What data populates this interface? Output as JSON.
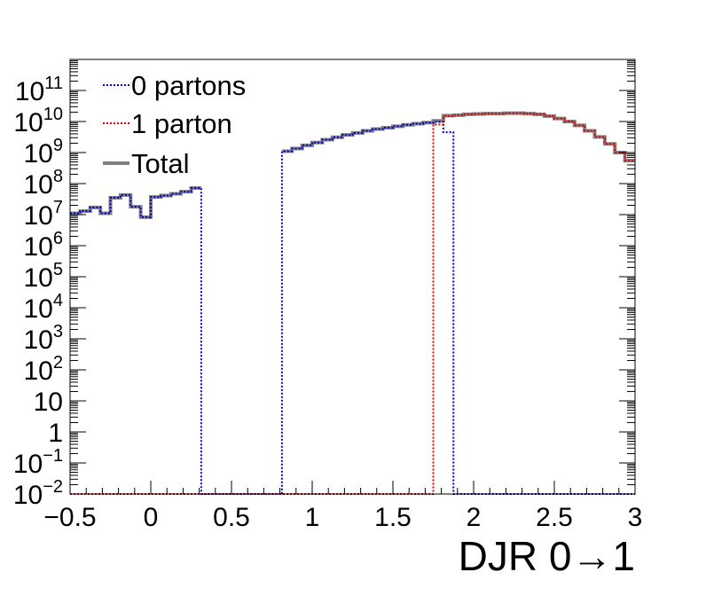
{
  "chart_data": {
    "type": "line",
    "title": "",
    "xlabel": "DJR 0→1",
    "ylabel": "",
    "xlim": [
      -0.5,
      3
    ],
    "ylim": [
      0.01,
      1000000000000.0
    ],
    "y_scale": "log",
    "grid": false,
    "legend_placement": "top-left",
    "x_ticks": [
      {
        "value": -0.5,
        "label": "−0.5"
      },
      {
        "value": 0,
        "label": "0"
      },
      {
        "value": 0.5,
        "label": "0.5"
      },
      {
        "value": 1,
        "label": "1"
      },
      {
        "value": 1.5,
        "label": "1.5"
      },
      {
        "value": 2,
        "label": "2"
      },
      {
        "value": 2.5,
        "label": "2.5"
      },
      {
        "value": 3,
        "label": "3"
      }
    ],
    "y_ticks": [
      {
        "value": 0.01,
        "base": "10",
        "exp": "−2"
      },
      {
        "value": 0.1,
        "base": "10",
        "exp": "−1"
      },
      {
        "value": 1,
        "base": "1",
        "exp": ""
      },
      {
        "value": 10,
        "base": "10",
        "exp": ""
      },
      {
        "value": 100,
        "base": "10",
        "exp": "2"
      },
      {
        "value": 1000,
        "base": "10",
        "exp": "3"
      },
      {
        "value": 10000,
        "base": "10",
        "exp": "4"
      },
      {
        "value": 100000,
        "base": "10",
        "exp": "5"
      },
      {
        "value": 1000000,
        "base": "10",
        "exp": "6"
      },
      {
        "value": 10000000,
        "base": "10",
        "exp": "7"
      },
      {
        "value": 100000000,
        "base": "10",
        "exp": "8"
      },
      {
        "value": 1000000000,
        "base": "10",
        "exp": "9"
      },
      {
        "value": 10000000000,
        "base": "10",
        "exp": "10"
      },
      {
        "value": 100000000000,
        "base": "10",
        "exp": "11"
      }
    ],
    "bins": {
      "start": -0.5,
      "width": 0.0625,
      "count": 56
    },
    "series": [
      {
        "name": "0 partons",
        "color": "#0000cc",
        "style": "dotted",
        "values": [
          11000000.0,
          13000000.0,
          17000000.0,
          11000000.0,
          35000000.0,
          43000000.0,
          18000000.0,
          8300000.0,
          37000000.0,
          41000000.0,
          47000000.0,
          55000000.0,
          72000000.0,
          0.01,
          0.01,
          0.01,
          0.01,
          0.01,
          0.01,
          0.01,
          0.01,
          1100000000.0,
          1350000000.0,
          1700000000.0,
          2100000000.0,
          2600000000.0,
          3100000000.0,
          3700000000.0,
          4300000000.0,
          5000000000.0,
          5700000000.0,
          6300000000.0,
          7000000000.0,
          7800000000.0,
          8500000000.0,
          9200000000.0,
          9800000000.0,
          4500000000.0,
          0.01,
          0.01,
          0.01,
          0.01,
          0.01,
          0.01,
          0.01,
          0.01,
          0.01,
          0.01,
          0.01,
          0.01,
          0.01,
          0.01,
          0.01,
          0.01,
          0.01,
          0.01
        ]
      },
      {
        "name": "1 parton",
        "color": "#dd0000",
        "style": "dotted",
        "values": [
          0.01,
          0.01,
          0.01,
          0.01,
          0.01,
          0.01,
          0.01,
          0.01,
          0.01,
          0.01,
          0.01,
          0.01,
          0.01,
          0.01,
          0.01,
          0.01,
          0.01,
          0.01,
          0.01,
          0.01,
          0.01,
          0.01,
          0.01,
          0.01,
          0.01,
          0.01,
          0.01,
          0.01,
          0.01,
          0.01,
          0.01,
          0.01,
          0.01,
          0.01,
          0.01,
          0.01,
          8000000000.0,
          15000000000.0,
          16000000000.0,
          17000000000.0,
          17500000000.0,
          18000000000.0,
          18000000000.0,
          18500000000.0,
          18500000000.0,
          18000000000.0,
          17000000000.0,
          15000000000.0,
          12500000000.0,
          10000000000.0,
          7500000000.0,
          5000000000.0,
          3200000000.0,
          1900000000.0,
          1000000000.0,
          550000000.0
        ]
      },
      {
        "name": "Total",
        "color": "#808080",
        "style": "solid",
        "values": [
          11000000.0,
          13000000.0,
          17000000.0,
          11000000.0,
          35000000.0,
          43000000.0,
          18000000.0,
          8300000.0,
          37000000.0,
          41000000.0,
          47000000.0,
          55000000.0,
          72000000.0,
          null,
          null,
          null,
          null,
          null,
          null,
          null,
          null,
          1100000000.0,
          1350000000.0,
          1700000000.0,
          2100000000.0,
          2600000000.0,
          3100000000.0,
          3700000000.0,
          4300000000.0,
          5000000000.0,
          5700000000.0,
          6300000000.0,
          7000000000.0,
          7800000000.0,
          8500000000.0,
          9200000000.0,
          10500000000.0,
          15500000000.0,
          16000000000.0,
          17000000000.0,
          17500000000.0,
          18000000000.0,
          18000000000.0,
          18500000000.0,
          18500000000.0,
          18000000000.0,
          17000000000.0,
          15000000000.0,
          12500000000.0,
          10000000000.0,
          7500000000.0,
          5000000000.0,
          3200000000.0,
          1900000000.0,
          1000000000.0,
          550000000.0
        ]
      }
    ]
  }
}
